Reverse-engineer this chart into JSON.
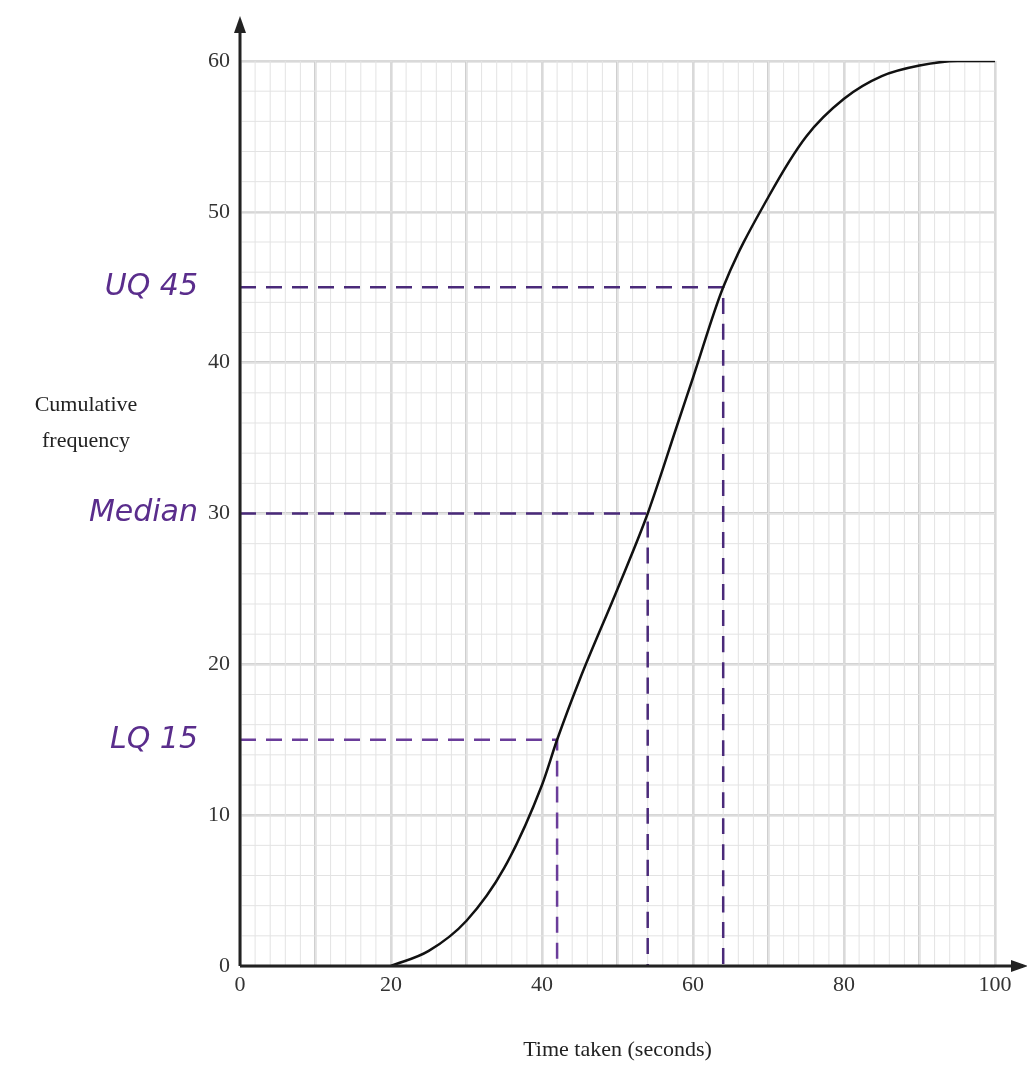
{
  "chart_data": {
    "type": "line",
    "xlabel": "Time taken (seconds)",
    "ylabel": "Cumulative frequency",
    "xlim": [
      0,
      100
    ],
    "ylim": [
      0,
      60
    ],
    "xticks": [
      0,
      {
        "value": 10,
        "label": null
      },
      20,
      {
        "value": 30,
        "label": null
      },
      40,
      {
        "value": 50,
        "label": null
      },
      60,
      {
        "value": 70,
        "label": null
      },
      80,
      {
        "value": 90,
        "label": null
      },
      100
    ],
    "yticks": [
      0,
      10,
      20,
      30,
      40,
      50,
      60
    ],
    "grid": true,
    "legend": false,
    "marker": "none",
    "series": [
      {
        "color": "#111111",
        "x": [
          20,
          25,
          30,
          35,
          40,
          42,
          45,
          50,
          54,
          58,
          60,
          64,
          70,
          75,
          80,
          85,
          90,
          95,
          100
        ],
        "values": [
          0,
          1,
          3,
          6.5,
          12,
          15,
          19,
          25,
          30,
          36,
          39,
          45,
          51,
          55,
          57.5,
          59,
          59.7,
          60,
          60
        ]
      },
      {
        "color": "#4a2a7a",
        "line_style": "dashed",
        "x": [
          0,
          64,
          64
        ],
        "values": [
          45,
          45,
          0
        ]
      },
      {
        "color": "#4a2a7a",
        "line_style": "dashed",
        "x": [
          0,
          54,
          54
        ],
        "values": [
          30,
          30,
          0
        ]
      },
      {
        "color": "#6a3d9a",
        "line_style": "dashed",
        "x": [
          0,
          42,
          42
        ],
        "values": [
          15,
          15,
          0
        ]
      }
    ],
    "annotations": [
      "UQ 45",
      "Median",
      "LQ 15"
    ]
  }
}
